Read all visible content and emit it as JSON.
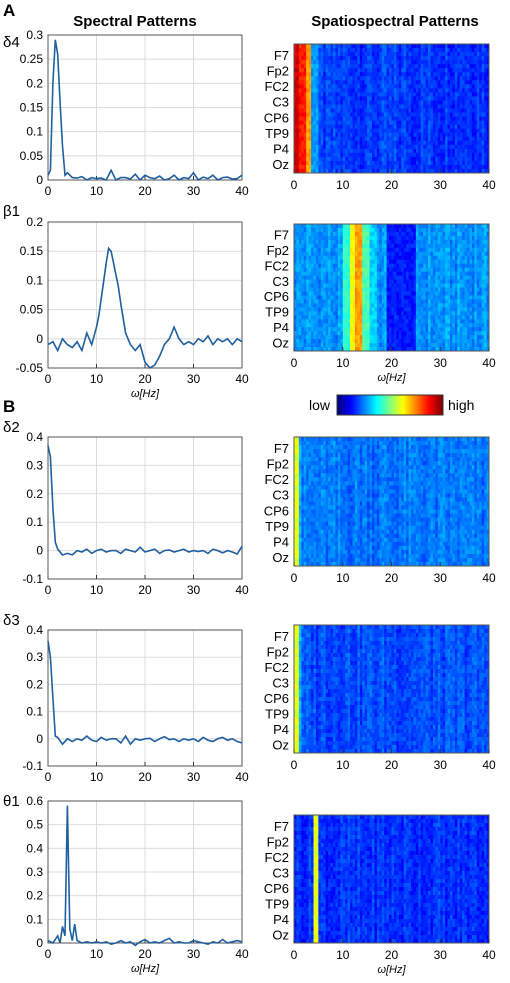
{
  "panel_labels": [
    "A",
    "B"
  ],
  "column_titles": {
    "left": "Spectral Patterns",
    "right": "Spatiospectral Patterns"
  },
  "x_axis_label": "ω[Hz]",
  "colorbar": {
    "low": "low",
    "high": "high",
    "colormap": "jet"
  },
  "line_color": "#1f5fa0",
  "chart_data": [
    {
      "type": "line",
      "symbol": "δ4",
      "xlim": [
        0,
        40
      ],
      "ylim": [
        0,
        0.3
      ],
      "xticks": [
        0,
        10,
        20,
        30,
        40
      ],
      "yticks": [
        {
          "v": 0,
          "label": "0"
        },
        {
          "v": 0.05,
          "label": "0.05"
        },
        {
          "v": 0.1,
          "label": "0.1"
        },
        {
          "v": 0.15,
          "label": "0.15"
        },
        {
          "v": 0.2,
          "label": "0.2"
        },
        {
          "v": 0.25,
          "label": "0.25"
        },
        {
          "v": 0.3,
          "label": "0.3"
        }
      ],
      "grid": true,
      "x": [
        0,
        0.5,
        1,
        1.5,
        2,
        2.5,
        3,
        3.5,
        4,
        5,
        6,
        7,
        8,
        9,
        10,
        11,
        12,
        13,
        14,
        15,
        16,
        17,
        18,
        19,
        20,
        21,
        22,
        23,
        24,
        25,
        26,
        27,
        28,
        29,
        30,
        31,
        32,
        33,
        34,
        35,
        36,
        37,
        38,
        39,
        40
      ],
      "y": [
        0.01,
        0.02,
        0.2,
        0.29,
        0.26,
        0.16,
        0.07,
        0.01,
        0.015,
        0.005,
        0.004,
        0.007,
        0.0,
        0.005,
        0.003,
        0.004,
        0.0,
        0.02,
        0.0,
        0.005,
        0.005,
        0.002,
        0.012,
        0.0,
        0.01,
        0.005,
        0.003,
        0.008,
        0.0,
        0.003,
        0.01,
        0.0,
        0.005,
        0.003,
        0.015,
        0.0,
        0.006,
        0.003,
        0.01,
        0.0,
        0.005,
        0.006,
        0.002,
        0.003,
        0.01
      ]
    },
    {
      "type": "line",
      "symbol": "β1",
      "xlim": [
        0,
        40
      ],
      "ylim": [
        -0.05,
        0.2
      ],
      "xticks": [
        0,
        10,
        20,
        30,
        40
      ],
      "yticks": [
        {
          "v": -0.05,
          "label": "-0.05"
        },
        {
          "v": 0,
          "label": "0"
        },
        {
          "v": 0.05,
          "label": "0.05"
        },
        {
          "v": 0.1,
          "label": "0.1"
        },
        {
          "v": 0.15,
          "label": "0.15"
        },
        {
          "v": 0.2,
          "label": "0.2"
        }
      ],
      "grid": true,
      "xlabel": "ω[Hz]",
      "x": [
        0,
        1,
        2,
        3,
        4,
        5,
        6,
        7,
        8,
        9,
        10,
        10.5,
        11,
        11.5,
        12,
        12.5,
        13,
        13.5,
        14,
        14.5,
        15,
        16,
        17,
        18,
        19,
        20,
        21,
        22,
        23,
        24,
        25,
        26,
        27,
        28,
        29,
        30,
        31,
        32,
        33,
        34,
        35,
        36,
        37,
        38,
        39,
        40
      ],
      "y": [
        -0.01,
        -0.005,
        -0.02,
        0.0,
        -0.01,
        -0.015,
        -0.005,
        -0.02,
        0.01,
        -0.01,
        0.02,
        0.04,
        0.07,
        0.1,
        0.13,
        0.155,
        0.15,
        0.13,
        0.11,
        0.09,
        0.06,
        0.01,
        -0.01,
        -0.02,
        -0.01,
        -0.04,
        -0.05,
        -0.045,
        -0.03,
        -0.01,
        0.0,
        0.02,
        0.0,
        -0.01,
        -0.005,
        -0.01,
        0.0,
        -0.005,
        0.005,
        -0.01,
        0.0,
        -0.005,
        0.0,
        -0.01,
        0.0,
        -0.005
      ]
    },
    {
      "type": "line",
      "symbol": "δ2",
      "xlim": [
        0,
        40
      ],
      "ylim": [
        -0.1,
        0.4
      ],
      "xticks": [
        0,
        10,
        20,
        30,
        40
      ],
      "yticks": [
        {
          "v": -0.1,
          "label": "-0.1"
        },
        {
          "v": 0,
          "label": "0"
        },
        {
          "v": 0.1,
          "label": "0.1"
        },
        {
          "v": 0.2,
          "label": "0.2"
        },
        {
          "v": 0.3,
          "label": "0.3"
        },
        {
          "v": 0.4,
          "label": "0.4"
        }
      ],
      "grid": true,
      "x": [
        0,
        0.5,
        1,
        1.5,
        2,
        3,
        4,
        5,
        6,
        7,
        8,
        9,
        10,
        11,
        12,
        13,
        14,
        15,
        16,
        17,
        18,
        19,
        20,
        21,
        22,
        23,
        24,
        25,
        26,
        27,
        28,
        29,
        30,
        31,
        32,
        33,
        34,
        35,
        36,
        37,
        38,
        39,
        40
      ],
      "y": [
        0.37,
        0.33,
        0.15,
        0.03,
        0.005,
        -0.015,
        -0.01,
        -0.015,
        0.0,
        -0.005,
        0.005,
        -0.01,
        0.0,
        0.005,
        -0.005,
        0.0,
        0.0,
        -0.01,
        0.005,
        0.0,
        -0.005,
        0.012,
        -0.005,
        0.0,
        0.005,
        -0.01,
        0.0,
        0.002,
        -0.005,
        0.0,
        0.005,
        -0.005,
        0.0,
        -0.003,
        0.0,
        -0.01,
        0.005,
        0.0,
        -0.008,
        0.0,
        -0.005,
        -0.012,
        0.015
      ]
    },
    {
      "type": "line",
      "symbol": "δ3",
      "xlim": [
        0,
        40
      ],
      "ylim": [
        -0.1,
        0.4
      ],
      "xticks": [
        0,
        10,
        20,
        30,
        40
      ],
      "yticks": [
        {
          "v": -0.1,
          "label": "-0.1"
        },
        {
          "v": 0,
          "label": "0"
        },
        {
          "v": 0.1,
          "label": "0.1"
        },
        {
          "v": 0.2,
          "label": "0.2"
        },
        {
          "v": 0.3,
          "label": "0.3"
        },
        {
          "v": 0.4,
          "label": "0.4"
        }
      ],
      "grid": true,
      "x": [
        0,
        0.5,
        1,
        1.5,
        2,
        3,
        4,
        5,
        6,
        7,
        8,
        9,
        10,
        11,
        12,
        13,
        14,
        15,
        16,
        17,
        18,
        19,
        20,
        21,
        22,
        23,
        24,
        25,
        26,
        27,
        28,
        29,
        30,
        31,
        32,
        33,
        34,
        35,
        36,
        37,
        38,
        39,
        40
      ],
      "y": [
        0.36,
        0.3,
        0.15,
        0.01,
        0.005,
        -0.02,
        0.0,
        -0.01,
        0.0,
        -0.005,
        0.01,
        -0.005,
        -0.01,
        0.005,
        -0.005,
        0.0,
        0.0,
        -0.015,
        0.01,
        -0.02,
        0.0,
        -0.005,
        0.0,
        0.002,
        -0.01,
        0.0,
        0.008,
        -0.003,
        0.0,
        -0.01,
        0.0,
        -0.005,
        0.0,
        -0.01,
        0.005,
        -0.005,
        -0.01,
        0.0,
        0.005,
        -0.005,
        0.0,
        -0.01,
        -0.015
      ]
    },
    {
      "type": "line",
      "symbol": "θ1",
      "xlim": [
        0,
        40
      ],
      "ylim": [
        0,
        0.6
      ],
      "xticks": [
        0,
        10,
        20,
        30,
        40
      ],
      "yticks": [
        {
          "v": 0,
          "label": "0"
        },
        {
          "v": 0.1,
          "label": "0.1"
        },
        {
          "v": 0.2,
          "label": "0.2"
        },
        {
          "v": 0.3,
          "label": "0.3"
        },
        {
          "v": 0.4,
          "label": "0.4"
        },
        {
          "v": 0.5,
          "label": "0.5"
        },
        {
          "v": 0.6,
          "label": "0.6"
        }
      ],
      "grid": true,
      "xlabel": "ω[Hz]",
      "x": [
        0,
        1,
        2,
        2.5,
        3,
        3.5,
        4,
        4.5,
        5,
        5.5,
        6,
        7,
        8,
        9,
        10,
        11,
        12,
        13,
        14,
        15,
        16,
        17,
        18,
        19,
        20,
        21,
        22,
        23,
        24,
        25,
        26,
        27,
        28,
        29,
        30,
        31,
        32,
        33,
        34,
        35,
        36,
        37,
        38,
        39,
        40
      ],
      "y": [
        0.01,
        0.0,
        0.03,
        0.0,
        0.07,
        0.03,
        0.58,
        0.06,
        0.01,
        0.08,
        0.01,
        0.0,
        0.005,
        0.0,
        0.005,
        0.0,
        0.005,
        -0.005,
        0.0,
        0.01,
        0.0,
        0.005,
        -0.01,
        0.005,
        0.015,
        0.0,
        0.005,
        0.0,
        0.01,
        0.02,
        0.0,
        0.005,
        0.0,
        0.0,
        0.01,
        0.005,
        0.0,
        -0.005,
        0.005,
        0.0,
        0.015,
        0.0,
        0.005,
        0.01,
        0.005
      ]
    },
    {
      "type": "heatmap",
      "xlim": [
        0,
        40
      ],
      "xticks": [
        0,
        10,
        20,
        30,
        40
      ],
      "rows": [
        "F7",
        "Fp2",
        "FC2",
        "C3",
        "CP6",
        "TP9",
        "P4",
        "Oz"
      ],
      "base": 0.18,
      "bands": [
        {
          "from": 0,
          "to": 1,
          "level": 0.92
        },
        {
          "from": 1,
          "to": 2.5,
          "level": 0.85
        },
        {
          "from": 2.5,
          "to": 3.5,
          "level": 0.72
        },
        {
          "from": 3.5,
          "to": 5,
          "level": 0.28
        }
      ]
    },
    {
      "type": "heatmap",
      "xlim": [
        0,
        40
      ],
      "xticks": [
        0,
        10,
        20,
        30,
        40
      ],
      "rows": [
        "F7",
        "Fp2",
        "FC2",
        "C3",
        "CP6",
        "TP9",
        "P4",
        "Oz"
      ],
      "xlabel": "ω[Hz]",
      "base": 0.27,
      "bands": [
        {
          "from": 10,
          "to": 11.5,
          "level": 0.42
        },
        {
          "from": 11.5,
          "to": 12.5,
          "level": 0.62
        },
        {
          "from": 12.5,
          "to": 14,
          "level": 0.72
        },
        {
          "from": 14,
          "to": 15.5,
          "level": 0.45
        },
        {
          "from": 15.5,
          "to": 17,
          "level": 0.33
        },
        {
          "from": 19,
          "to": 25,
          "level": 0.15
        }
      ]
    },
    {
      "type": "heatmap",
      "xlim": [
        0,
        40
      ],
      "xticks": [
        0,
        10,
        20,
        30,
        40
      ],
      "rows": [
        "F7",
        "Fp2",
        "FC2",
        "C3",
        "CP6",
        "TP9",
        "P4",
        "Oz"
      ],
      "base": 0.24,
      "bands": [
        {
          "from": 0,
          "to": 1,
          "level": 0.6
        },
        {
          "from": 1,
          "to": 1.5,
          "level": 0.3
        }
      ]
    },
    {
      "type": "heatmap",
      "xlim": [
        0,
        40
      ],
      "xticks": [
        0,
        10,
        20,
        30,
        40
      ],
      "rows": [
        "F7",
        "Fp2",
        "FC2",
        "C3",
        "CP6",
        "TP9",
        "P4",
        "Oz"
      ],
      "base": 0.2,
      "bands": [
        {
          "from": 0,
          "to": 1,
          "level": 0.6
        },
        {
          "from": 1,
          "to": 1.5,
          "level": 0.3
        }
      ]
    },
    {
      "type": "heatmap",
      "xlim": [
        0,
        40
      ],
      "xticks": [
        0,
        10,
        20,
        30,
        40
      ],
      "rows": [
        "F7",
        "Fp2",
        "FC2",
        "C3",
        "CP6",
        "TP9",
        "P4",
        "Oz"
      ],
      "xlabel": "ω[Hz]",
      "base": 0.17,
      "bands": [
        {
          "from": 4,
          "to": 5,
          "level": 0.6
        }
      ]
    }
  ]
}
